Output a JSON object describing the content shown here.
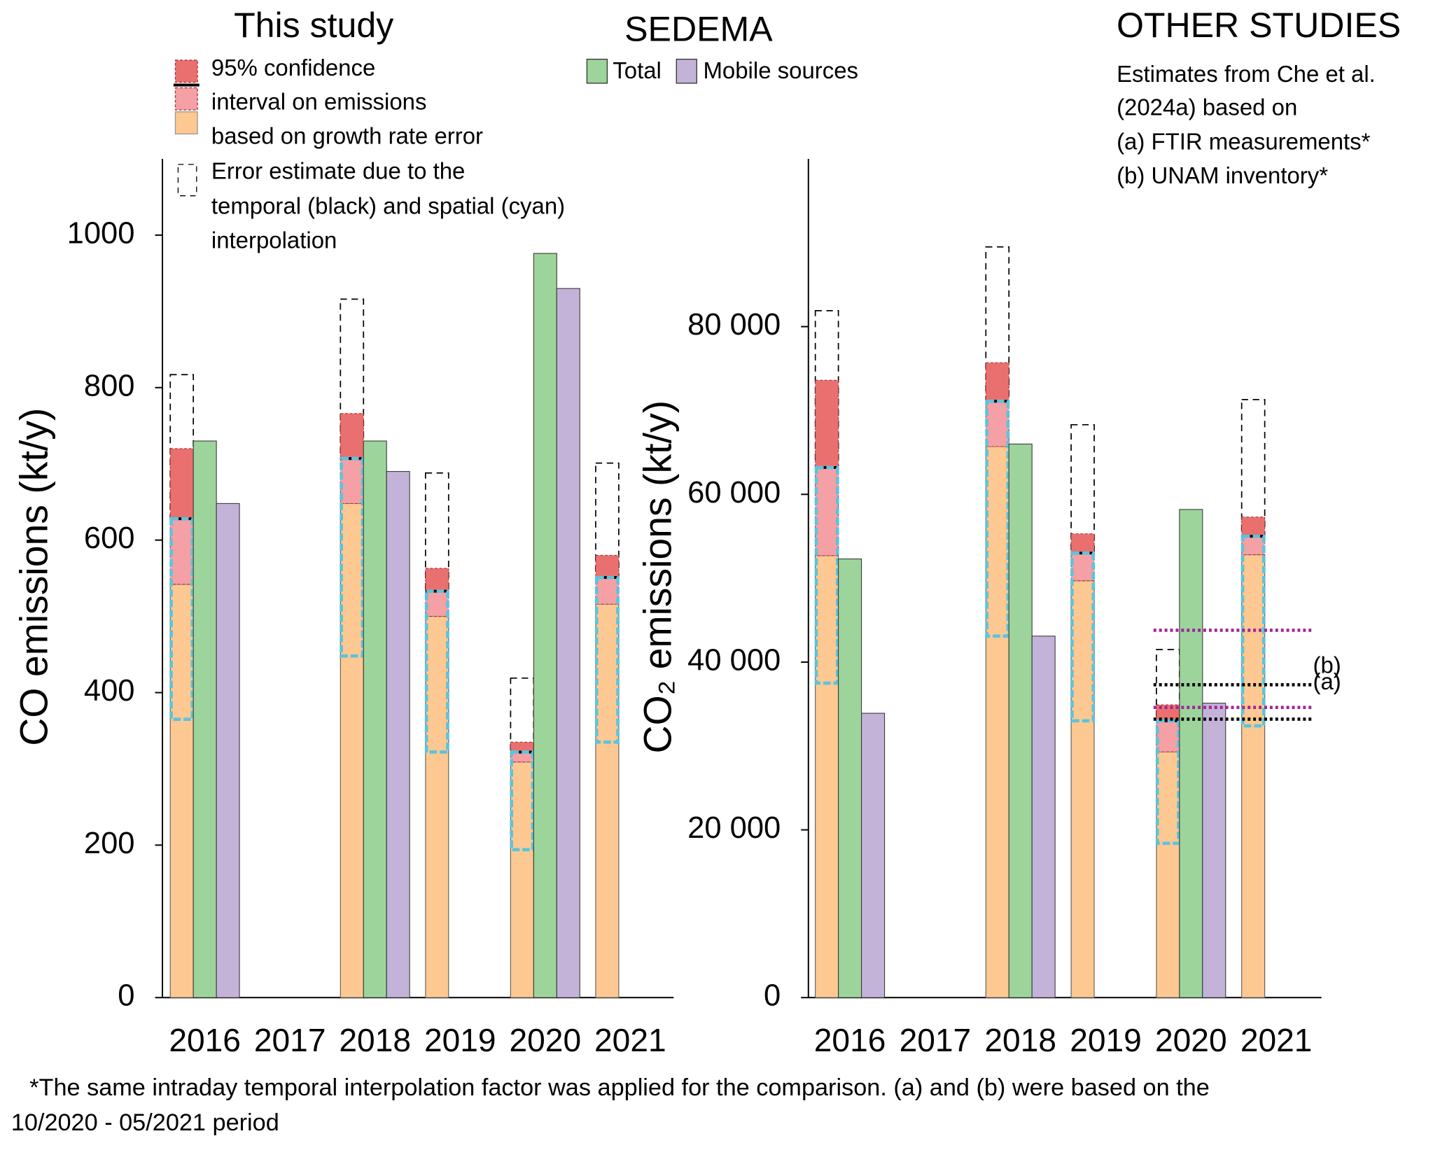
{
  "titles": [
    "This study",
    "SEDEMA",
    "OTHER STUDIES"
  ],
  "legend": {
    "this_study": [
      "95% confidence",
      " interval on emissions",
      "based on growth rate error"
    ],
    "error_box": [
      "Error estimate due to the",
      "temporal  (black) and spatial (cyan)",
      "interpolation"
    ]
  },
  "other_studies_note": [
    "Estimates from Che et al.",
    "(2024a) based on",
    "(a) FTIR measurements*",
    "(b) UNAM inventory*"
  ],
  "footnote": [
    "*The same intraday temporal interpolation factor was applied for the comparison. (a) and (b) were based on the",
    "10/2020 - 05/2021 period"
  ],
  "chart_data": [
    {
      "type": "bar",
      "ylabel": "CO emissions (kt/y)",
      "categories": [
        "2016",
        "2017",
        "2018",
        "2019",
        "2020",
        "2021"
      ],
      "ylim": [
        0,
        1100
      ],
      "yticks": [
        0,
        200,
        400,
        600,
        800,
        1000
      ],
      "this_study": {
        "colors": {
          "lower": "#fdc891",
          "ci_below": "#f4a0a4",
          "ci_above": "#ea7070",
          "spatial": "#5bc4dd"
        },
        "ci_low": [
          542,
          null,
          648,
          500,
          309,
          516
        ],
        "central": [
          628,
          null,
          707,
          533,
          322,
          551
        ],
        "ci_high": [
          720,
          null,
          766,
          563,
          335,
          580
        ],
        "temporal_high": [
          817,
          null,
          916,
          688,
          419,
          701
        ],
        "spatial_low": [
          365,
          null,
          448,
          322,
          194,
          335
        ],
        "spatial_high": [
          628,
          null,
          707,
          533,
          322,
          551
        ]
      },
      "series": [
        {
          "name": "Total",
          "color": "#9dd49b",
          "values": [
            730,
            null,
            730,
            null,
            976,
            null
          ]
        },
        {
          "name": "Mobile sources",
          "color": "#c3b3d9",
          "values": [
            648,
            null,
            690,
            null,
            930,
            null
          ]
        }
      ]
    },
    {
      "type": "bar",
      "ylabel": "CO₂ emissions (kt/y)",
      "categories": [
        "2016",
        "2017",
        "2018",
        "2019",
        "2020",
        "2021"
      ],
      "ylim": [
        0,
        100000
      ],
      "yticks": [
        0,
        {
          "value": 20000,
          "label": "20 000"
        },
        {
          "value": 40000,
          "label": "40 000"
        },
        {
          "value": 60000,
          "label": "60 000"
        },
        {
          "value": 80000,
          "label": "80 000"
        }
      ],
      "this_study": {
        "colors": {
          "lower": "#fdc891",
          "ci_below": "#f4a0a4",
          "ci_above": "#ea7070",
          "spatial": "#5bc4dd"
        },
        "ci_low": [
          52700,
          null,
          65700,
          49700,
          29300,
          52800
        ],
        "central": [
          63200,
          null,
          71100,
          53000,
          33000,
          55000
        ],
        "ci_high": [
          73600,
          null,
          75700,
          55300,
          34900,
          57300
        ],
        "temporal_high": [
          81900,
          null,
          89500,
          68300,
          41500,
          71300
        ],
        "spatial_low": [
          37500,
          null,
          43100,
          33000,
          18400,
          32400
        ],
        "spatial_high": [
          63200,
          null,
          71100,
          53000,
          33000,
          55000
        ]
      },
      "series": [
        {
          "name": "Total",
          "color": "#9dd49b",
          "values": [
            52300,
            null,
            66000,
            null,
            58200,
            null
          ]
        },
        {
          "name": "Mobile sources",
          "color": "#c3b3d9",
          "values": [
            33900,
            null,
            43100,
            null,
            35100,
            null
          ]
        }
      ],
      "reference_lines": [
        {
          "label": "(a)",
          "color": "#000000",
          "values": [
            37300,
            33200
          ]
        },
        {
          "label": "(b)",
          "color": "#a0259a",
          "values": [
            43800,
            34600
          ]
        }
      ]
    }
  ]
}
